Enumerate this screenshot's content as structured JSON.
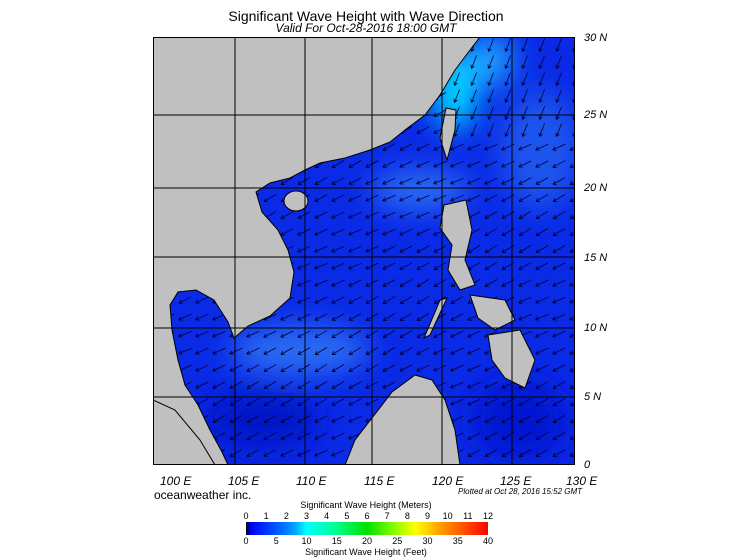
{
  "title": "Significant Wave Height with Wave Direction",
  "subtitle": "Valid For Oct-28-2016 18:00 GMT",
  "map": {
    "region": "South China Sea",
    "lon_labels": [
      "100 E",
      "105 E",
      "110 E",
      "115 E",
      "120 E",
      "125 E",
      "130 E"
    ],
    "lat_labels": [
      "30 N",
      "25 N",
      "20 N",
      "15 N",
      "10 N",
      "5 N",
      "0"
    ],
    "land_color": "#c0c0c0",
    "ocean_color": "#0a2ae6",
    "predominant_wave_direction": "toward southwest"
  },
  "brand": "oceanweather inc.",
  "plotted": "Plotted at Oct 28, 2016 15:52 GMT",
  "colorbar": {
    "meters_title": "Significant Wave Height (Meters)",
    "feet_title": "Significant Wave Height (Feet)",
    "meters_ticks": [
      "0",
      "1",
      "2",
      "3",
      "4",
      "5",
      "6",
      "7",
      "8",
      "9",
      "10",
      "11",
      "12"
    ],
    "feet_ticks": [
      "0",
      "5",
      "10",
      "15",
      "20",
      "25",
      "30",
      "35",
      "40"
    ]
  }
}
